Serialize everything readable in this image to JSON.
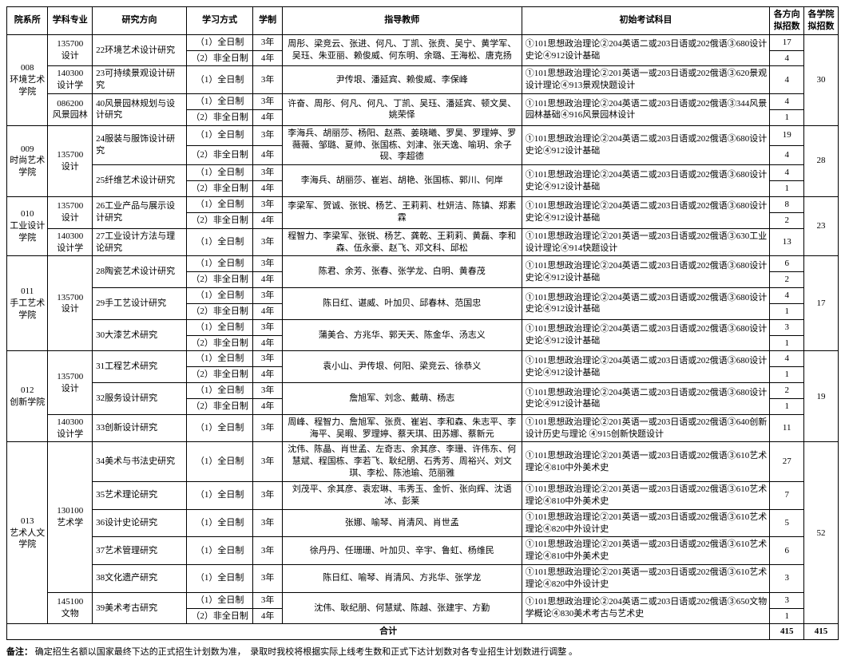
{
  "columns": {
    "dept": "院系所",
    "major": "学科专业",
    "direction": "研究方向",
    "mode": "学习方式",
    "len": "学制",
    "teacher": "指导教师",
    "exam": "初始考试科目",
    "q1": "各方向拟招数",
    "q2": "各学院拟招数"
  },
  "modes": {
    "ft": "（1）全日制",
    "pt": "（2）非全日制"
  },
  "years": {
    "y3": "3年",
    "y4": "4年"
  },
  "majors": {
    "m135700": "135700\n设计",
    "m140300": "140300\n设计学",
    "m086200": "086200\n风景园林",
    "m130100": "130100\n艺术学",
    "m145100": "145100\n文物"
  },
  "sumLabel": "合计",
  "sumQ1": "415",
  "sumQ2": "415",
  "footnote": {
    "lead": "备注：",
    "text": "确定招生名额以国家最终下达的正式招生计划数为准，　录取时我校将根据实际上线考生数和正式下达计划数对各专业招生计划数进行调整  。"
  },
  "depts": [
    {
      "code": "008",
      "name": "环境艺术学院",
      "quota": "30",
      "majors": [
        {
          "key": "m135700",
          "dirs": [
            {
              "name": "22环境艺术设计研究",
              "teacher": "周彤、梁竞云、张进、何凡、丁凯、张贲、吴宁、黄学军、吴珏、朱亚丽、赖俊威、何东明、余璐、王海松、唐克扬",
              "exam": "①101思想政治理论②204英语二或203日语或202俄语③680设计史论④912设计基础",
              "rows": [
                [
                  "ft",
                  "y3",
                  "17"
                ],
                [
                  "pt",
                  "y4",
                  "4"
                ]
              ]
            }
          ]
        },
        {
          "key": "m140300",
          "dirs": [
            {
              "name": "23可持续景观设计研究",
              "teacher": "尹传垠、潘延宾、赖俊威、李保峰",
              "exam": "①101思想政治理论②201英语一或203日语或202俄语③620景观设计理论④913景观快题设计",
              "rows": [
                [
                  "ft",
                  "y3",
                  "4"
                ]
              ]
            }
          ]
        },
        {
          "key": "m086200",
          "dirs": [
            {
              "name": "40风景园林规划与设计研究",
              "teacher": "许奋、周彤、何凡、何凡、丁凯、吴珏、潘延宾、顿文昊、姚荣怿",
              "exam": "①101思想政治理论②204英语二或203日语或202俄语③344风景园林基础④916风景园林设计",
              "rows": [
                [
                  "ft",
                  "y3",
                  "4"
                ],
                [
                  "pt",
                  "y4",
                  "1"
                ]
              ]
            }
          ]
        }
      ]
    },
    {
      "code": "009",
      "name": "时尚艺术学院",
      "quota": "28",
      "majors": [
        {
          "key": "m135700",
          "dirs": [
            {
              "name": "24服装与服饰设计研究",
              "teacher": "李海兵、胡丽莎、杨阳、赵燕、姜晓曦、罗昊、罗理婷、罗薇薇、邹璐、夏帅、张国栋、刘津、张天逸、喻玥、余子砚、李超德",
              "exam": "①101思想政治理论②204英语二或203日语或202俄语③680设计史论④912设计基础",
              "rows": [
                [
                  "ft",
                  "y3",
                  "19"
                ],
                [
                  "pt",
                  "y4",
                  "4"
                ]
              ]
            },
            {
              "name": "25纤维艺术设计研究",
              "teacher": "李海兵、胡丽莎、崔岩、胡艳、张国栋、郭川、何岸",
              "exam": "①101思想政治理论②204英语二或203日语或202俄语③680设计史论④912设计基础",
              "rows": [
                [
                  "ft",
                  "y3",
                  "4"
                ],
                [
                  "pt",
                  "y4",
                  "1"
                ]
              ]
            }
          ]
        }
      ]
    },
    {
      "code": "010",
      "name": "工业设计学院",
      "quota": "23",
      "majors": [
        {
          "key": "m135700",
          "dirs": [
            {
              "name": "26工业产品与展示设计研究",
              "teacher": "李梁军、贺诚、张锐、杨艺、王莉莉、杜妍洁、陈镇、郑素霖",
              "exam": "①101思想政治理论②204英语二或203日语或202俄语③680设计史论④912设计基础",
              "rows": [
                [
                  "ft",
                  "y3",
                  "8"
                ],
                [
                  "pt",
                  "y4",
                  "2"
                ]
              ]
            }
          ]
        },
        {
          "key": "m140300",
          "dirs": [
            {
              "name": "27工业设计方法与理论研究",
              "teacher": "程智力、李梁军、张锐、杨艺、龚乾、王莉莉、黄磊、李和森、伍永豪、赵飞、邓文科、邱松",
              "exam": "①101思想政治理论②201英语一或203日语或202俄语③630工业设计理论④914快题设计",
              "rows": [
                [
                  "ft",
                  "y3",
                  "13"
                ]
              ]
            }
          ]
        }
      ]
    },
    {
      "code": "011",
      "name": "手工艺术学院",
      "quota": "17",
      "majors": [
        {
          "key": "m135700",
          "dirs": [
            {
              "name": "28陶瓷艺术设计研究",
              "teacher": "陈君、余芳、张春、张学龙、白明、黄春茂",
              "exam": "①101思想政治理论②204英语二或203日语或202俄语③680设计史论④912设计基础",
              "rows": [
                [
                  "ft",
                  "y3",
                  "6"
                ],
                [
                  "pt",
                  "y4",
                  "2"
                ]
              ]
            },
            {
              "name": "29手工艺设计研究",
              "teacher": "陈日红、谌威、叶加贝、邱春林、范国忠",
              "exam": "①101思想政治理论②204英语二或203日语或202俄语③680设计史论④912设计基础",
              "rows": [
                [
                  "ft",
                  "y3",
                  "4"
                ],
                [
                  "pt",
                  "y4",
                  "1"
                ]
              ]
            },
            {
              "name": "30大漆艺术研究",
              "teacher": "蒲美合、方兆华、郭天天、陈金华、汤志义",
              "exam": "①101思想政治理论②204英语二或203日语或202俄语③680设计史论④912设计基础",
              "rows": [
                [
                  "ft",
                  "y3",
                  "3"
                ],
                [
                  "pt",
                  "y4",
                  "1"
                ]
              ]
            }
          ]
        }
      ]
    },
    {
      "code": "012",
      "name": "创新学院",
      "quota": "19",
      "majors": [
        {
          "key": "m135700",
          "dirs": [
            {
              "name": "31工程艺术研究",
              "teacher": "袁小山、尹传垠、何阳、梁竞云、徐恭义",
              "exam": "①101思想政治理论②204英语二或203日语或202俄语③680设计史论④912设计基础",
              "rows": [
                [
                  "ft",
                  "y3",
                  "4"
                ],
                [
                  "pt",
                  "y4",
                  "1"
                ]
              ]
            },
            {
              "name": "32服务设计研究",
              "teacher": "詹旭军、刘念、戴萌、杨志",
              "exam": "①101思想政治理论②204英语二或203日语或202俄语③680设计史论④912设计基础",
              "rows": [
                [
                  "ft",
                  "y3",
                  "2"
                ],
                [
                  "pt",
                  "y4",
                  "1"
                ]
              ]
            }
          ]
        },
        {
          "key": "m140300",
          "dirs": [
            {
              "name": "33创新设计研究",
              "teacher": "周峰、程智力、詹旭军、张贲、崔岩、李和森、朱志平、李海平、吴暇、罗理婷、蔡天琪、田苏娜、蔡新元",
              "exam": "①101思想政治理论②201英语一或203日语或202俄语③640创新设计历史与理论 ④915创新快题设计",
              "rows": [
                [
                  "ft",
                  "y3",
                  "11"
                ]
              ]
            }
          ]
        }
      ]
    },
    {
      "code": "013",
      "name": "艺术人文学院",
      "quota": "52",
      "majors": [
        {
          "key": "m130100",
          "dirs": [
            {
              "name": "34美术与书法史研究",
              "teacher": "沈伟、陈晶、肖世孟、左奇志、余其彦、李珊、许伟东、何慧斌、程国栋、李若飞、耿纪朋、石秀芳、周裕兴、刘文琪、李松、陈池瑜、范丽雅",
              "exam": "①101思想政治理论②201英语一或203日语或202俄语③610艺术理论④810中外美术史",
              "rows": [
                [
                  "ft",
                  "y3",
                  "27"
                ]
              ]
            },
            {
              "name": "35艺术理论研究",
              "teacher": "刘茂平、余其彦、袁宏琳、韦秀玉、金忻、张向辉、沈语冰、彭莱",
              "exam": "①101思想政治理论②201英语一或203日语或202俄语③610艺术理论④810中外美术史",
              "rows": [
                [
                  "ft",
                  "y3",
                  "7"
                ]
              ]
            },
            {
              "name": "36设计史论研究",
              "teacher": "张娜、喻琴、肖清风、肖世孟",
              "exam": "①101思想政治理论②201英语一或203日语或202俄语③610艺术理论④820中外设计史",
              "rows": [
                [
                  "ft",
                  "y3",
                  "5"
                ]
              ]
            },
            {
              "name": "37艺术管理研究",
              "teacher": "徐丹丹、任珊珊、叶加贝、辛宇、鲁虹、杨维民",
              "exam": "①101思想政治理论②201英语一或203日语或202俄语③610艺术理论④810中外美术史",
              "rows": [
                [
                  "ft",
                  "y3",
                  "6"
                ]
              ]
            },
            {
              "name": "38文化遗产研究",
              "teacher": "陈日红、喻琴、肖清风、方兆华、张学龙",
              "exam": "①101思想政治理论②201英语一或203日语或202俄语③610艺术理论④820中外设计史",
              "rows": [
                [
                  "ft",
                  "y3",
                  "3"
                ]
              ]
            }
          ]
        },
        {
          "key": "m145100",
          "dirs": [
            {
              "name": "39美术考古研究",
              "teacher": "沈伟、耿纪朋、何慧斌、陈越、张建宇、方勤",
              "exam": "①101思想政治理论②204英语二或203日语或202俄语③650文物学概论④830美术考古与艺术史",
              "rows": [
                [
                  "ft",
                  "y3",
                  "3"
                ],
                [
                  "pt",
                  "y4",
                  "1"
                ]
              ]
            }
          ]
        }
      ]
    }
  ]
}
